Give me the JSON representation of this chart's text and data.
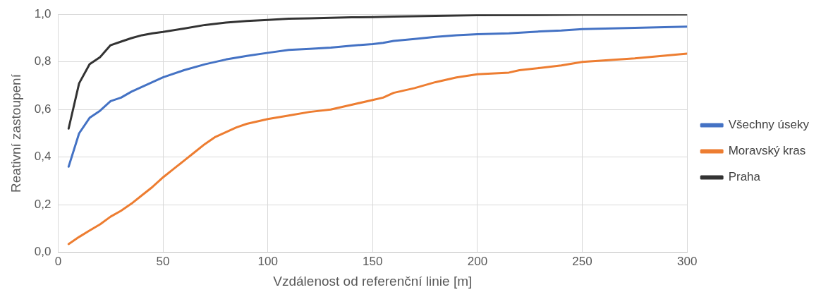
{
  "chart_data": {
    "type": "line",
    "xlabel": "Vzdálenost od referenční linie [m]",
    "ylabel": "Reativní zastoupení",
    "xlim": [
      0,
      300
    ],
    "xticks": [
      0,
      50,
      100,
      150,
      200,
      250,
      300
    ],
    "ylim": [
      0,
      1
    ],
    "yticks": [
      {
        "value": 0,
        "label": "0,0"
      },
      {
        "value": 0.2,
        "label": "0,2"
      },
      {
        "value": 0.4,
        "label": "0,4"
      },
      {
        "value": 0.6,
        "label": "0,6"
      },
      {
        "value": 0.8,
        "label": "0,8"
      },
      {
        "value": 1,
        "label": "1,0"
      }
    ],
    "grid": true,
    "legend": "right",
    "marker": "none",
    "line_style": "solid",
    "series": [
      {
        "name": "Všechny úseky",
        "color": "#4472c4",
        "x": [
          5,
          10,
          15,
          20,
          25,
          30,
          35,
          40,
          45,
          50,
          60,
          70,
          80,
          90,
          100,
          110,
          120,
          130,
          140,
          150,
          155,
          160,
          170,
          180,
          190,
          200,
          215,
          230,
          240,
          250,
          275,
          300
        ],
        "values": [
          0.36,
          0.5,
          0.565,
          0.595,
          0.635,
          0.65,
          0.675,
          0.695,
          0.715,
          0.735,
          0.765,
          0.79,
          0.81,
          0.825,
          0.838,
          0.85,
          0.855,
          0.86,
          0.868,
          0.875,
          0.88,
          0.888,
          0.896,
          0.905,
          0.912,
          0.916,
          0.92,
          0.928,
          0.932,
          0.938,
          0.943,
          0.948
        ]
      },
      {
        "name": "Moravský kras",
        "color": "#ed7d31",
        "x": [
          5,
          10,
          15,
          20,
          25,
          30,
          35,
          40,
          45,
          50,
          55,
          60,
          65,
          70,
          75,
          80,
          85,
          90,
          100,
          110,
          120,
          130,
          140,
          150,
          155,
          160,
          170,
          180,
          190,
          200,
          215,
          220,
          230,
          240,
          250,
          275,
          300
        ],
        "values": [
          0.035,
          0.065,
          0.092,
          0.118,
          0.15,
          0.175,
          0.205,
          0.24,
          0.275,
          0.315,
          0.35,
          0.385,
          0.42,
          0.455,
          0.485,
          0.505,
          0.525,
          0.54,
          0.56,
          0.575,
          0.59,
          0.6,
          0.62,
          0.64,
          0.65,
          0.67,
          0.69,
          0.715,
          0.735,
          0.748,
          0.755,
          0.765,
          0.775,
          0.785,
          0.8,
          0.815,
          0.835
        ]
      },
      {
        "name": "Praha",
        "color": "#333333",
        "x": [
          5,
          10,
          15,
          20,
          25,
          30,
          35,
          40,
          45,
          50,
          60,
          70,
          80,
          90,
          100,
          110,
          120,
          130,
          140,
          150,
          160,
          180,
          200,
          250,
          300
        ],
        "values": [
          0.52,
          0.71,
          0.79,
          0.82,
          0.87,
          0.885,
          0.9,
          0.912,
          0.92,
          0.926,
          0.94,
          0.955,
          0.965,
          0.972,
          0.976,
          0.981,
          0.983,
          0.985,
          0.987,
          0.988,
          0.99,
          0.993,
          0.996,
          0.998,
          0.999
        ]
      }
    ]
  }
}
